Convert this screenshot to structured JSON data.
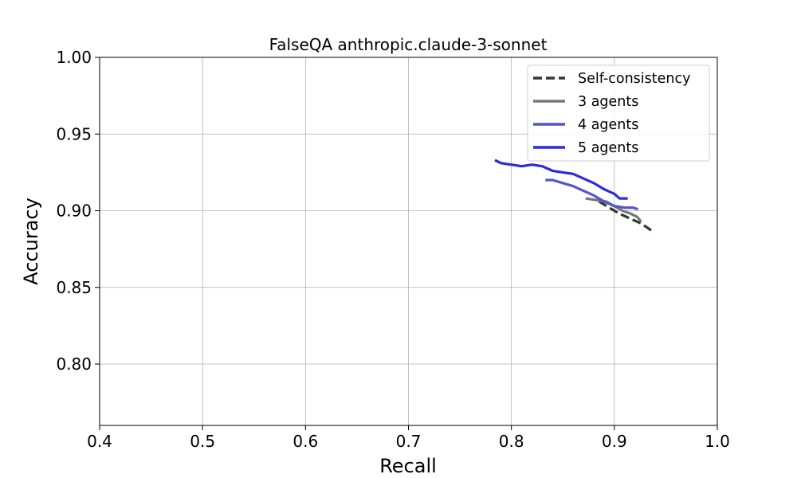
{
  "chart_data": {
    "type": "line",
    "title": "FalseQA anthropic.claude-3-sonnet",
    "xlabel": "Recall",
    "ylabel": "Accuracy",
    "xlim": [
      0.4,
      1.0
    ],
    "ylim": [
      0.76,
      1.0
    ],
    "xticks": [
      "0.4",
      "0.5",
      "0.6",
      "0.7",
      "0.8",
      "0.9",
      "1.0"
    ],
    "yticks": [
      "0.80",
      "0.85",
      "0.90",
      "0.95",
      "1.00"
    ],
    "grid": true,
    "legend_position": "top-right",
    "series": [
      {
        "name": "Self-consistency",
        "color": "#2a3d26",
        "dash": "dashed",
        "points": [
          [
            0.885,
            0.906
          ],
          [
            0.895,
            0.902
          ],
          [
            0.905,
            0.898
          ],
          [
            0.915,
            0.895
          ],
          [
            0.925,
            0.892
          ],
          [
            0.932,
            0.889
          ],
          [
            0.938,
            0.886
          ]
        ]
      },
      {
        "name": "3 agents",
        "color": "#777777",
        "dash": "solid",
        "points": [
          [
            0.872,
            0.908
          ],
          [
            0.882,
            0.907
          ],
          [
            0.892,
            0.906
          ],
          [
            0.9,
            0.903
          ],
          [
            0.908,
            0.9
          ],
          [
            0.916,
            0.898
          ],
          [
            0.922,
            0.896
          ],
          [
            0.926,
            0.893
          ]
        ]
      },
      {
        "name": "4 agents",
        "color": "#5555cc",
        "dash": "solid",
        "points": [
          [
            0.833,
            0.92
          ],
          [
            0.84,
            0.92
          ],
          [
            0.85,
            0.918
          ],
          [
            0.86,
            0.916
          ],
          [
            0.87,
            0.913
          ],
          [
            0.88,
            0.91
          ],
          [
            0.89,
            0.906
          ],
          [
            0.9,
            0.903
          ],
          [
            0.91,
            0.902
          ],
          [
            0.918,
            0.902
          ],
          [
            0.923,
            0.901
          ]
        ]
      },
      {
        "name": "5 agents",
        "color": "#2b2bdc",
        "dash": "solid",
        "points": [
          [
            0.784,
            0.933
          ],
          [
            0.79,
            0.931
          ],
          [
            0.8,
            0.93
          ],
          [
            0.81,
            0.929
          ],
          [
            0.82,
            0.93
          ],
          [
            0.83,
            0.929
          ],
          [
            0.84,
            0.926
          ],
          [
            0.85,
            0.925
          ],
          [
            0.86,
            0.924
          ],
          [
            0.87,
            0.921
          ],
          [
            0.88,
            0.918
          ],
          [
            0.89,
            0.914
          ],
          [
            0.9,
            0.911
          ],
          [
            0.905,
            0.908
          ],
          [
            0.913,
            0.908
          ]
        ]
      }
    ]
  }
}
